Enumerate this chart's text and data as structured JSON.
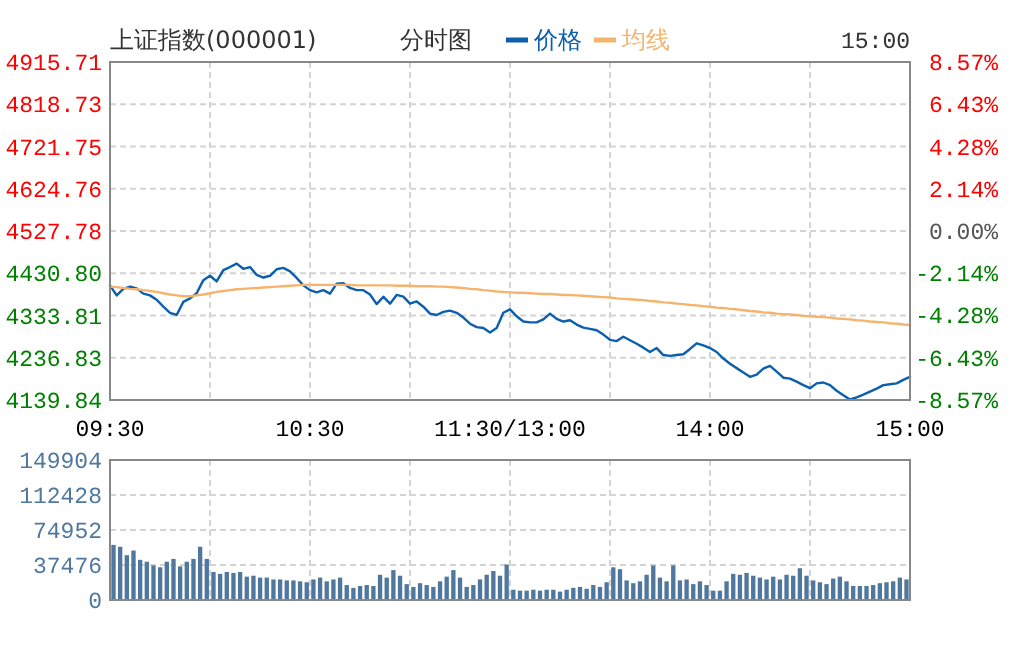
{
  "chart_data": [
    {
      "type": "line",
      "title": "上证指数(000001)",
      "subtitle": "分时图",
      "annotations": [
        "15:00"
      ],
      "legend": "top",
      "grid": true,
      "marker": "none",
      "line_style": "solid",
      "categories": [
        "09:30",
        null,
        null,
        null,
        null,
        null,
        null,
        null,
        null,
        null,
        null,
        null,
        null,
        null,
        null,
        null,
        null,
        null,
        null,
        null,
        null,
        null,
        null,
        null,
        null,
        null,
        null,
        null,
        null,
        null,
        "10:30",
        null,
        null,
        null,
        null,
        null,
        null,
        null,
        null,
        null,
        null,
        null,
        null,
        null,
        null,
        null,
        null,
        null,
        null,
        null,
        null,
        null,
        null,
        null,
        null,
        null,
        null,
        null,
        null,
        null,
        "11:30/13:00",
        null,
        null,
        null,
        null,
        null,
        null,
        null,
        null,
        null,
        null,
        null,
        null,
        null,
        null,
        null,
        null,
        null,
        null,
        null,
        null,
        null,
        null,
        null,
        null,
        null,
        null,
        null,
        null,
        null,
        "14:00",
        null,
        null,
        null,
        null,
        null,
        null,
        null,
        null,
        null,
        null,
        null,
        null,
        null,
        null,
        null,
        null,
        null,
        null,
        null,
        null,
        null,
        null,
        null,
        null,
        null,
        null,
        null,
        null,
        null,
        "15:00"
      ],
      "ylim": [
        4139.84,
        4915.71
      ],
      "yticks": [
        {
          "value": 4139.84,
          "label": "4139.84"
        },
        {
          "value": 4236.83,
          "label": "4236.83"
        },
        {
          "value": 4333.81,
          "label": "4333.81"
        },
        {
          "value": 4430.8,
          "label": "4430.80"
        },
        {
          "value": 4527.78,
          "label": "4527.78"
        },
        {
          "value": 4624.76,
          "label": "4624.76"
        },
        {
          "value": 4721.75,
          "label": "4721.75"
        },
        {
          "value": 4818.73,
          "label": "4818.73"
        },
        {
          "value": 4915.71,
          "label": "4915.71"
        }
      ],
      "y2lim": [
        -8.57,
        8.57
      ],
      "y2ticks": [
        {
          "value": -8.57,
          "label": "-8.57%"
        },
        {
          "value": -6.43,
          "label": "-6.43%"
        },
        {
          "value": -4.28,
          "label": "-4.28%"
        },
        {
          "value": -2.14,
          "label": "-2.14%"
        },
        {
          "value": 0,
          "label": "0.00%"
        },
        {
          "value": 2.14,
          "label": "2.14%"
        },
        {
          "value": 4.28,
          "label": "4.28%"
        },
        {
          "value": 6.43,
          "label": "6.43%"
        },
        {
          "value": 8.57,
          "label": "8.57%"
        }
      ],
      "series": [
        {
          "name": "价格",
          "color": "#0b5fad",
          "values": [
            4403,
            4380,
            4395,
            4400,
            4396,
            4384,
            4380,
            4370,
            4354,
            4340,
            4335,
            4365,
            4373,
            4385,
            4415,
            4425,
            4412,
            4438,
            4445,
            4453,
            4441,
            4445,
            4427,
            4421,
            4425,
            4440,
            4443,
            4435,
            4420,
            4403,
            4392,
            4387,
            4392,
            4384,
            4407,
            4408,
            4397,
            4392,
            4392,
            4382,
            4360,
            4377,
            4361,
            4381,
            4377,
            4361,
            4366,
            4354,
            4338,
            4335,
            4342,
            4345,
            4340,
            4329,
            4315,
            4307,
            4305,
            4295,
            4305,
            4340,
            4348,
            4332,
            4320,
            4318,
            4318,
            4325,
            4338,
            4326,
            4320,
            4323,
            4313,
            4306,
            4303,
            4300,
            4290,
            4278,
            4275,
            4285,
            4277,
            4269,
            4260,
            4250,
            4259,
            4243,
            4241,
            4243,
            4245,
            4257,
            4270,
            4265,
            4259,
            4250,
            4235,
            4223,
            4213,
            4203,
            4193,
            4198,
            4212,
            4218,
            4205,
            4191,
            4189,
            4182,
            4174,
            4167,
            4178,
            4180,
            4174,
            4161,
            4151,
            4141,
            4146,
            4152,
            4159,
            4166,
            4174,
            4176,
            4178,
            4186,
            4193
          ]
        },
        {
          "name": "均线",
          "color": "#f5b46e",
          "values": [
            4400,
            4399,
            4397,
            4395,
            4394,
            4392,
            4390,
            4388,
            4385,
            4382,
            4380,
            4378,
            4378,
            4380,
            4382,
            4385,
            4388,
            4390,
            4392,
            4394,
            4395,
            4396,
            4397,
            4398,
            4399,
            4400,
            4401,
            4402,
            4403,
            4404,
            4404,
            4404,
            4404,
            4404,
            4404,
            4404,
            4404,
            4403,
            4403,
            4403,
            4403,
            4403,
            4403,
            4402,
            4402,
            4402,
            4401,
            4401,
            4401,
            4400,
            4400,
            4399,
            4398,
            4397,
            4395,
            4394,
            4392,
            4391,
            4389,
            4388,
            4387,
            4386,
            4386,
            4385,
            4384,
            4383,
            4383,
            4382,
            4381,
            4381,
            4380,
            4379,
            4378,
            4377,
            4376,
            4375,
            4373,
            4372,
            4371,
            4370,
            4369,
            4367,
            4366,
            4364,
            4363,
            4361,
            4360,
            4358,
            4357,
            4355,
            4354,
            4352,
            4351,
            4349,
            4348,
            4346,
            4344,
            4343,
            4341,
            4340,
            4338,
            4337,
            4336,
            4335,
            4333,
            4332,
            4331,
            4330,
            4329,
            4327,
            4326,
            4325,
            4323,
            4322,
            4320,
            4319,
            4318,
            4316,
            4315,
            4313,
            4312
          ]
        }
      ]
    },
    {
      "type": "bar",
      "tick_labels": "y",
      "grid": true,
      "color": "#50789f",
      "categories": [
        null,
        null,
        null,
        null,
        null,
        null,
        null,
        null,
        null,
        null,
        null,
        null,
        null,
        null,
        null,
        null,
        null,
        null,
        null,
        null,
        null,
        null,
        null,
        null,
        null,
        null,
        null,
        null,
        null,
        null,
        null,
        null,
        null,
        null,
        null,
        null,
        null,
        null,
        null,
        null,
        null,
        null,
        null,
        null,
        null,
        null,
        null,
        null,
        null,
        null,
        null,
        null,
        null,
        null,
        null,
        null,
        null,
        null,
        null,
        null,
        null,
        null,
        null,
        null,
        null,
        null,
        null,
        null,
        null,
        null,
        null,
        null,
        null,
        null,
        null,
        null,
        null,
        null,
        null,
        null,
        null,
        null,
        null,
        null,
        null,
        null,
        null,
        null,
        null,
        null,
        null,
        null,
        null,
        null,
        null,
        null,
        null,
        null,
        null,
        null,
        null,
        null,
        null,
        null,
        null,
        null,
        null,
        null,
        null,
        null,
        null,
        null,
        null,
        null,
        null,
        null,
        null,
        null,
        null,
        null
      ],
      "ylim": [
        0,
        149904
      ],
      "yticks": [
        0,
        37476,
        74952,
        112428,
        149904
      ],
      "values": [
        59000,
        57000,
        48000,
        53000,
        43000,
        41000,
        37000,
        35000,
        41000,
        44000,
        36000,
        41000,
        44000,
        57000,
        44000,
        30000,
        28000,
        30000,
        29000,
        30000,
        25000,
        26000,
        24000,
        24000,
        22000,
        22000,
        21000,
        21000,
        20000,
        19000,
        22000,
        24000,
        20000,
        22000,
        24000,
        16000,
        13000,
        15000,
        16000,
        15000,
        27000,
        24000,
        32000,
        26000,
        17000,
        14000,
        18000,
        16000,
        14000,
        20000,
        25000,
        32000,
        24000,
        14000,
        16000,
        22000,
        27000,
        31000,
        26000,
        38000,
        11000,
        10000,
        10000,
        11000,
        10000,
        11000,
        11000,
        9000,
        11000,
        13000,
        14000,
        12000,
        16000,
        14000,
        19000,
        35000,
        33000,
        21000,
        18000,
        20000,
        27000,
        37000,
        24000,
        20000,
        37000,
        21000,
        22000,
        17000,
        20000,
        16000,
        10000,
        10000,
        20000,
        28000,
        27000,
        29000,
        26000,
        24000,
        22000,
        25000,
        22000,
        27000,
        26000,
        34000,
        26000,
        21000,
        19000,
        17000,
        23000,
        25000,
        20000,
        15000,
        15000,
        15000,
        16000,
        18000,
        19000,
        20000,
        24000,
        22000
      ]
    }
  ]
}
